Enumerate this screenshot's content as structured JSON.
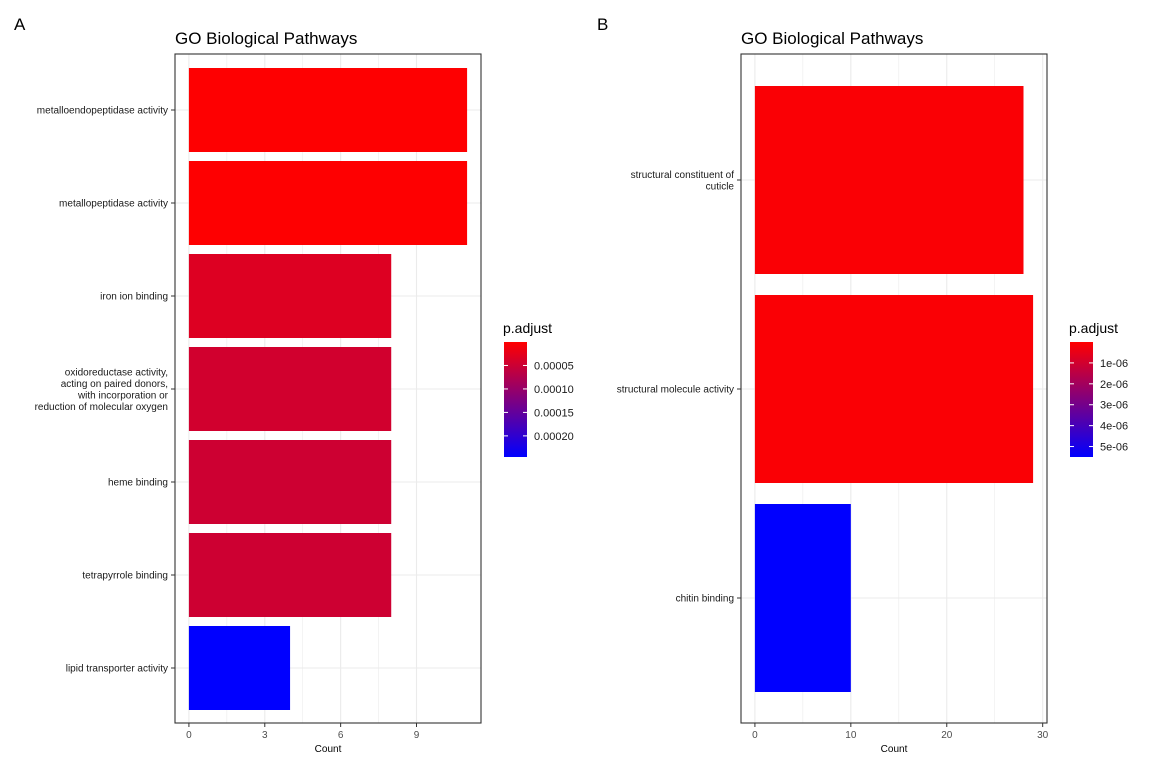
{
  "colors": {
    "high": "#FF0000",
    "low": "#0000FF",
    "grid": "#EBEBEB",
    "panel_border": "#333333"
  },
  "chart_data": [
    {
      "type": "bar",
      "orientation": "horizontal",
      "panel_tag": "A",
      "title": "GO Biological Pathways",
      "xlabel": "Count",
      "ylabel": "",
      "xlim": [
        -0.55,
        11.55
      ],
      "xticks": [
        0,
        3,
        6,
        9
      ],
      "xtick_labels": [
        "0",
        "3",
        "6",
        "9"
      ],
      "grid": true,
      "categories": [
        "metalloendopeptidase activity",
        "metallopeptidase activity",
        "iron ion binding",
        "oxidoreductase activity,\nacting on paired donors,\nwith incorporation or\nreduction of molecular oxygen",
        "heme binding",
        "tetrapyrrole binding",
        "lipid transporter activity"
      ],
      "values": [
        11,
        11,
        8,
        8,
        8,
        8,
        4
      ],
      "p_adjust": [
        1e-06,
        1e-06,
        3.3e-05,
        4.4e-05,
        4.8e-05,
        4.8e-05,
        0.000245
      ],
      "legend": {
        "title": "p.adjust",
        "placement": "right",
        "range": [
          0.0,
          0.000245
        ],
        "ticks": [
          5e-05,
          0.0001,
          0.00015,
          0.0002
        ],
        "tick_labels": [
          "0.00005",
          "0.00010",
          "0.00015",
          "0.00020"
        ]
      }
    },
    {
      "type": "bar",
      "orientation": "horizontal",
      "panel_tag": "B",
      "title": "GO Biological Pathways",
      "xlabel": "Count",
      "ylabel": "",
      "xlim": [
        -1.45,
        30.45
      ],
      "xticks": [
        0,
        10,
        20,
        30
      ],
      "xtick_labels": [
        "0",
        "10",
        "20",
        "30"
      ],
      "grid": true,
      "categories": [
        "structural constituent of\ncuticle",
        "structural molecule activity",
        "chitin binding"
      ],
      "values": [
        28,
        29,
        10
      ],
      "p_adjust": [
        1e-07,
        1e-07,
        5.5e-06
      ],
      "legend": {
        "title": "p.adjust",
        "placement": "right",
        "range": [
          0.0,
          5.5e-06
        ],
        "ticks": [
          1e-06,
          2e-06,
          3e-06,
          4e-06,
          5e-06
        ],
        "tick_labels": [
          "1e-06",
          "2e-06",
          "3e-06",
          "4e-06",
          "5e-06"
        ]
      }
    }
  ]
}
